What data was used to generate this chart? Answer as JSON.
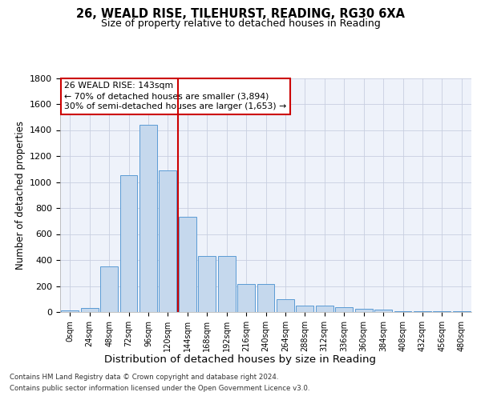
{
  "title1": "26, WEALD RISE, TILEHURST, READING, RG30 6XA",
  "title2": "Size of property relative to detached houses in Reading",
  "xlabel": "Distribution of detached houses by size in Reading",
  "ylabel": "Number of detached properties",
  "bar_color": "#c5d8ed",
  "bar_edge_color": "#5b9bd5",
  "background_color": "#eef2fa",
  "grid_color": "#c8cfe0",
  "categories": [
    "0sqm",
    "24sqm",
    "48sqm",
    "72sqm",
    "96sqm",
    "120sqm",
    "144sqm",
    "168sqm",
    "192sqm",
    "216sqm",
    "240sqm",
    "264sqm",
    "288sqm",
    "312sqm",
    "336sqm",
    "360sqm",
    "384sqm",
    "408sqm",
    "432sqm",
    "456sqm",
    "480sqm"
  ],
  "values": [
    10,
    30,
    350,
    1050,
    1440,
    1090,
    730,
    430,
    430,
    215,
    215,
    100,
    50,
    50,
    40,
    25,
    20,
    5,
    5,
    5,
    5
  ],
  "vline_color": "#cc0000",
  "annotation_line1": "26 WEALD RISE: 143sqm",
  "annotation_line2": "← 70% of detached houses are smaller (3,894)",
  "annotation_line3": "30% of semi-detached houses are larger (1,653) →",
  "annotation_box_color": "#cc0000",
  "footer1": "Contains HM Land Registry data © Crown copyright and database right 2024.",
  "footer2": "Contains public sector information licensed under the Open Government Licence v3.0.",
  "ylim": [
    0,
    1800
  ],
  "yticks": [
    0,
    200,
    400,
    600,
    800,
    1000,
    1200,
    1400,
    1600,
    1800
  ]
}
